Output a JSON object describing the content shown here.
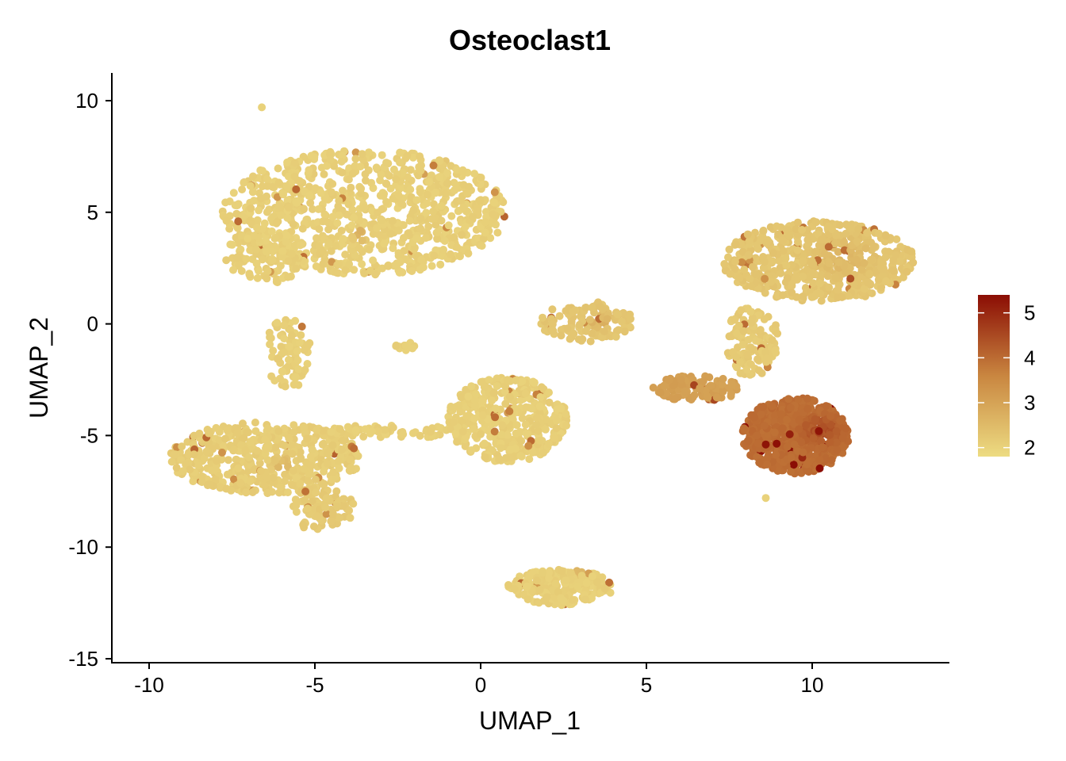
{
  "chart_data": {
    "type": "scatter",
    "title": "Osteoclast1",
    "xlabel": "UMAP_1",
    "ylabel": "UMAP_2",
    "xlim": [
      -11,
      14
    ],
    "ylim": [
      -15,
      11
    ],
    "xticks": [
      -10,
      -5,
      0,
      5,
      10
    ],
    "yticks": [
      -15,
      -10,
      -5,
      0,
      5,
      10
    ],
    "grid": false,
    "legend_position": "right",
    "color_scale": {
      "min": 1.8,
      "max": 5.4,
      "ticks": [
        2,
        3,
        4,
        5
      ],
      "low_color": "#EDDC82",
      "mid_color": "#C98640",
      "high_color": "#8B0D04"
    },
    "point_count_note": "dense clusters",
    "clusters": [
      {
        "name": "top-left",
        "cx": -3.5,
        "cy": 5.0,
        "rx": 4.3,
        "ry": 2.8,
        "n": 900,
        "base": 2.0,
        "hot": [
          {
            "x": -0.5,
            "y": 7.7,
            "r": 0.8,
            "v": 4.6
          },
          {
            "x": -3.6,
            "y": 4.0,
            "r": 0.4,
            "v": 3.4
          }
        ]
      },
      {
        "name": "top-left-tail",
        "cx": -6.5,
        "cy": 3.0,
        "rx": 1.2,
        "ry": 1.2,
        "n": 120,
        "base": 2.0,
        "hot": []
      },
      {
        "name": "bridge-left",
        "cx": -5.8,
        "cy": -1.3,
        "rx": 0.7,
        "ry": 1.6,
        "n": 80,
        "base": 2.0,
        "hot": []
      },
      {
        "name": "bottom-left",
        "cx": -6.5,
        "cy": -6.0,
        "rx": 2.9,
        "ry": 1.6,
        "n": 500,
        "base": 2.05,
        "hot": [
          {
            "x": -4.3,
            "y": -8.9,
            "r": 0.5,
            "v": 3.5
          },
          {
            "x": -6.0,
            "y": -6.3,
            "r": 0.5,
            "v": 3.0
          }
        ]
      },
      {
        "name": "bottom-left-lower",
        "cx": -4.8,
        "cy": -8.3,
        "rx": 1.0,
        "ry": 1.0,
        "n": 90,
        "base": 2.1,
        "hot": []
      },
      {
        "name": "bridge-mid",
        "cx": -2.5,
        "cy": -4.8,
        "rx": 2.2,
        "ry": 0.3,
        "n": 60,
        "base": 2.0,
        "hot": []
      },
      {
        "name": "center",
        "cx": 0.8,
        "cy": -4.3,
        "rx": 1.8,
        "ry": 1.9,
        "n": 420,
        "base": 2.0,
        "hot": []
      },
      {
        "name": "small-island",
        "cx": -2.3,
        "cy": -1.0,
        "rx": 0.3,
        "ry": 0.2,
        "n": 10,
        "base": 2.0,
        "hot": []
      },
      {
        "name": "mid-right-small",
        "cx": 3.2,
        "cy": 0.1,
        "rx": 1.4,
        "ry": 0.9,
        "n": 130,
        "base": 2.2,
        "hot": [
          {
            "x": 3.6,
            "y": 0.1,
            "r": 0.6,
            "v": 3.0
          }
        ]
      },
      {
        "name": "top-right",
        "cx": 10.2,
        "cy": 2.8,
        "rx": 2.9,
        "ry": 1.8,
        "n": 650,
        "base": 2.2,
        "hot": [
          {
            "x": 11.0,
            "y": 3.0,
            "r": 1.5,
            "v": 2.8
          }
        ]
      },
      {
        "name": "top-right-stem",
        "cx": 8.2,
        "cy": -0.8,
        "rx": 0.8,
        "ry": 1.6,
        "n": 120,
        "base": 2.1,
        "hot": []
      },
      {
        "name": "right-bridge",
        "cx": 6.5,
        "cy": -2.9,
        "rx": 1.3,
        "ry": 0.6,
        "n": 120,
        "base": 3.0,
        "hot": []
      },
      {
        "name": "right-hot",
        "cx": 9.5,
        "cy": -5.0,
        "rx": 1.6,
        "ry": 1.7,
        "n": 650,
        "base": 3.9,
        "hot": [
          {
            "x": 10.3,
            "y": -4.8,
            "r": 1.0,
            "v": 4.7
          }
        ]
      },
      {
        "name": "bottom",
        "cx": 2.4,
        "cy": -11.8,
        "rx": 1.6,
        "ry": 0.8,
        "n": 220,
        "base": 2.0,
        "hot": [
          {
            "x": 3.0,
            "y": -10.9,
            "r": 0.4,
            "v": 4.1
          }
        ]
      }
    ],
    "highlight_points": [
      {
        "x": 8.6,
        "y": -5.4,
        "v": 5.3
      },
      {
        "x": 10.2,
        "y": -4.8,
        "v": 5.3
      },
      {
        "x": -6.6,
        "y": 9.7,
        "v": 2.0
      },
      {
        "x": 8.6,
        "y": -7.8,
        "v": 2.0
      }
    ]
  }
}
